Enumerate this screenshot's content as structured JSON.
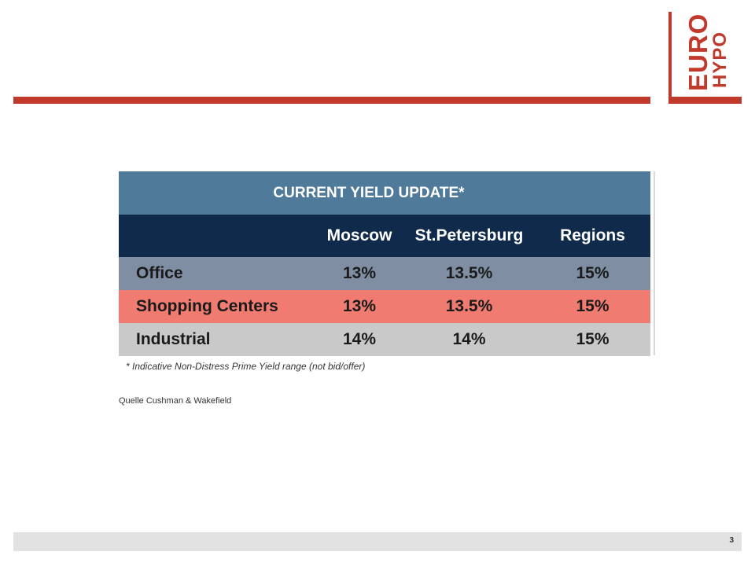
{
  "logo": {
    "line1": "EURO",
    "line2": "HYPO",
    "color": "#c0392b"
  },
  "table": {
    "title": "CURRENT YIELD UPDATE*",
    "columns": [
      "Moscow",
      "St.Petersburg",
      "Regions"
    ],
    "rows": [
      {
        "label": "Office",
        "moscow": "13%",
        "spb": "13.5%",
        "regions": "15%"
      },
      {
        "label": "Shopping Centers",
        "moscow": "13%",
        "spb": "13.5%",
        "regions": "15%"
      },
      {
        "label": "Industrial",
        "moscow": "14%",
        "spb": "14%",
        "regions": "15%"
      }
    ],
    "footnote": "* Indicative Non-Distress Prime Yield range (not bid/offer)",
    "colors": {
      "title_bg": "#4f7a99",
      "header_bg": "#0f2a4a",
      "office_bg": "#7f8ea2",
      "shopping_bg": "#f07b70",
      "industrial_bg": "#c9c9c9"
    }
  },
  "source": "Quelle Cushman & Wakefield",
  "footer": {
    "page_number": "3"
  }
}
